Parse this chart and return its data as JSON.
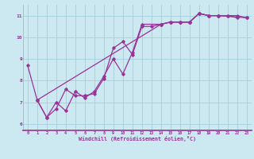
{
  "xlabel": "Windchill (Refroidissement éolien,°C)",
  "bg_color": "#cce8f0",
  "grid_color": "#99ccdd",
  "line_color": "#993399",
  "xlim": [
    -0.5,
    23.5
  ],
  "ylim": [
    5.7,
    11.5
  ],
  "xticks": [
    0,
    1,
    2,
    3,
    4,
    5,
    6,
    7,
    8,
    9,
    10,
    11,
    12,
    13,
    14,
    15,
    16,
    17,
    18,
    19,
    20,
    21,
    22,
    23
  ],
  "yticks": [
    6,
    7,
    8,
    9,
    10,
    11
  ],
  "line1_x": [
    0,
    1,
    2,
    3,
    4,
    5,
    6,
    7,
    8,
    9,
    10,
    11,
    12,
    13,
    14,
    15,
    16,
    17,
    18,
    19,
    20,
    21,
    22
  ],
  "line1_y": [
    8.7,
    7.1,
    6.3,
    6.7,
    7.6,
    7.3,
    7.3,
    7.4,
    8.1,
    9.5,
    9.8,
    9.2,
    10.5,
    10.5,
    10.6,
    10.7,
    10.7,
    10.7,
    11.1,
    11.0,
    11.0,
    11.0,
    10.9
  ],
  "line2_x": [
    1,
    2,
    3,
    4,
    5,
    6,
    7,
    8,
    9,
    10,
    11,
    12,
    14,
    15,
    16,
    17,
    18,
    19,
    20,
    23
  ],
  "line2_y": [
    7.1,
    6.3,
    7.0,
    6.6,
    7.5,
    7.2,
    7.5,
    8.2,
    9.0,
    8.3,
    9.3,
    10.6,
    10.6,
    10.7,
    10.7,
    10.7,
    11.1,
    11.0,
    11.0,
    10.9
  ],
  "line3_x": [
    1,
    14,
    15,
    16,
    17,
    18,
    19,
    20,
    21,
    22,
    23
  ],
  "line3_y": [
    7.1,
    10.6,
    10.7,
    10.7,
    10.7,
    11.1,
    11.0,
    11.0,
    11.0,
    11.0,
    10.9
  ]
}
